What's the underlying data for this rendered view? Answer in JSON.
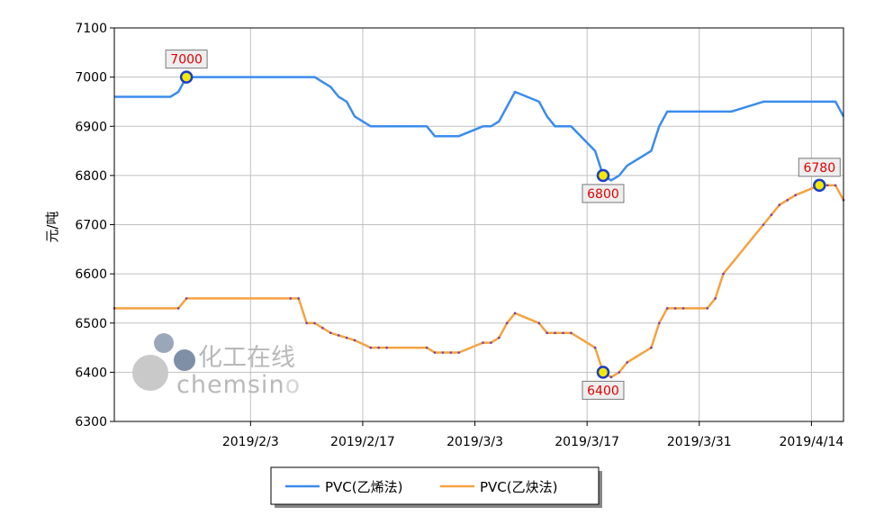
{
  "chart_data": {
    "type": "line",
    "ylabel": "元/吨",
    "ylim": [
      6300,
      7100
    ],
    "yticks": [
      6300,
      6400,
      6500,
      6600,
      6700,
      6800,
      6900,
      7000,
      7100
    ],
    "xlim": [
      "2019-01-17",
      "2019-04-18"
    ],
    "xticks": [
      {
        "date": "2019-02-03",
        "label": "2019/2/3"
      },
      {
        "date": "2019-02-17",
        "label": "2019/2/17"
      },
      {
        "date": "2019-03-03",
        "label": "2019/3/3"
      },
      {
        "date": "2019-03-17",
        "label": "2019/3/17"
      },
      {
        "date": "2019-03-31",
        "label": "2019/3/31"
      },
      {
        "date": "2019-04-14",
        "label": "2019/4/14"
      }
    ],
    "grid": true,
    "legend_position": "bottom",
    "series": [
      {
        "name": "PVC(乙烯法)",
        "color": "#3b8ced",
        "x": [
          "2019-01-17",
          "2019-01-24",
          "2019-01-25",
          "2019-01-26",
          "2019-02-02",
          "2019-02-08",
          "2019-02-11",
          "2019-02-12",
          "2019-02-13",
          "2019-02-14",
          "2019-02-15",
          "2019-02-16",
          "2019-02-18",
          "2019-02-19",
          "2019-02-20",
          "2019-02-25",
          "2019-02-26",
          "2019-02-27",
          "2019-02-28",
          "2019-03-01",
          "2019-03-04",
          "2019-03-05",
          "2019-03-06",
          "2019-03-07",
          "2019-03-08",
          "2019-03-11",
          "2019-03-12",
          "2019-03-13",
          "2019-03-14",
          "2019-03-15",
          "2019-03-18",
          "2019-03-19",
          "2019-03-20",
          "2019-03-21",
          "2019-03-22",
          "2019-03-25",
          "2019-03-26",
          "2019-03-27",
          "2019-03-28",
          "2019-03-29",
          "2019-04-01",
          "2019-04-02",
          "2019-04-03",
          "2019-04-04",
          "2019-04-08",
          "2019-04-09",
          "2019-04-10",
          "2019-04-11",
          "2019-04-12",
          "2019-04-15",
          "2019-04-16",
          "2019-04-17",
          "2019-04-18"
        ],
        "values": [
          6960,
          6960,
          6970,
          7000,
          7000,
          7000,
          7000,
          6990,
          6980,
          6960,
          6950,
          6920,
          6900,
          6900,
          6900,
          6900,
          6880,
          6880,
          6880,
          6880,
          6900,
          6900,
          6910,
          6940,
          6970,
          6950,
          6920,
          6900,
          6900,
          6900,
          6850,
          6800,
          6790,
          6800,
          6820,
          6850,
          6900,
          6930,
          6930,
          6930,
          6930,
          6930,
          6930,
          6930,
          6950,
          6950,
          6950,
          6950,
          6950,
          6950,
          6950,
          6950,
          6920
        ]
      },
      {
        "name": "PVC(乙炔法)",
        "color": "#f5a340",
        "x": [
          "2019-01-17",
          "2019-01-25",
          "2019-01-26",
          "2019-02-08",
          "2019-02-09",
          "2019-02-10",
          "2019-02-11",
          "2019-02-12",
          "2019-02-13",
          "2019-02-14",
          "2019-02-15",
          "2019-02-16",
          "2019-02-18",
          "2019-02-19",
          "2019-02-20",
          "2019-02-25",
          "2019-02-26",
          "2019-02-27",
          "2019-02-28",
          "2019-03-01",
          "2019-03-04",
          "2019-03-05",
          "2019-03-06",
          "2019-03-07",
          "2019-03-08",
          "2019-03-11",
          "2019-03-12",
          "2019-03-13",
          "2019-03-14",
          "2019-03-15",
          "2019-03-18",
          "2019-03-19",
          "2019-03-20",
          "2019-03-21",
          "2019-03-22",
          "2019-03-25",
          "2019-03-26",
          "2019-03-27",
          "2019-03-28",
          "2019-03-29",
          "2019-04-01",
          "2019-04-02",
          "2019-04-03",
          "2019-04-08",
          "2019-04-09",
          "2019-04-10",
          "2019-04-11",
          "2019-04-12",
          "2019-04-15",
          "2019-04-16",
          "2019-04-17",
          "2019-04-18"
        ],
        "values": [
          6530,
          6530,
          6550,
          6550,
          6550,
          6500,
          6500,
          6490,
          6480,
          6475,
          6470,
          6465,
          6450,
          6450,
          6450,
          6450,
          6440,
          6440,
          6440,
          6440,
          6460,
          6460,
          6470,
          6500,
          6520,
          6500,
          6480,
          6480,
          6480,
          6480,
          6450,
          6400,
          6390,
          6400,
          6420,
          6450,
          6500,
          6530,
          6530,
          6530,
          6530,
          6550,
          6600,
          6700,
          6720,
          6740,
          6750,
          6760,
          6780,
          6780,
          6780,
          6750
        ]
      }
    ],
    "annotations": [
      {
        "series": 0,
        "date": "2019-01-26",
        "value": 7000,
        "label": "7000",
        "placement": "above"
      },
      {
        "series": 0,
        "date": "2019-03-19",
        "value": 6800,
        "label": "6800",
        "placement": "below"
      },
      {
        "series": 1,
        "date": "2019-03-19",
        "value": 6400,
        "label": "6400",
        "placement": "below"
      },
      {
        "series": 1,
        "date": "2019-04-15",
        "value": 6780,
        "label": "6780",
        "placement": "above"
      }
    ]
  },
  "watermark": {
    "cn": "化工在线",
    "en_main": "chemsin",
    "en_tail": "o"
  }
}
